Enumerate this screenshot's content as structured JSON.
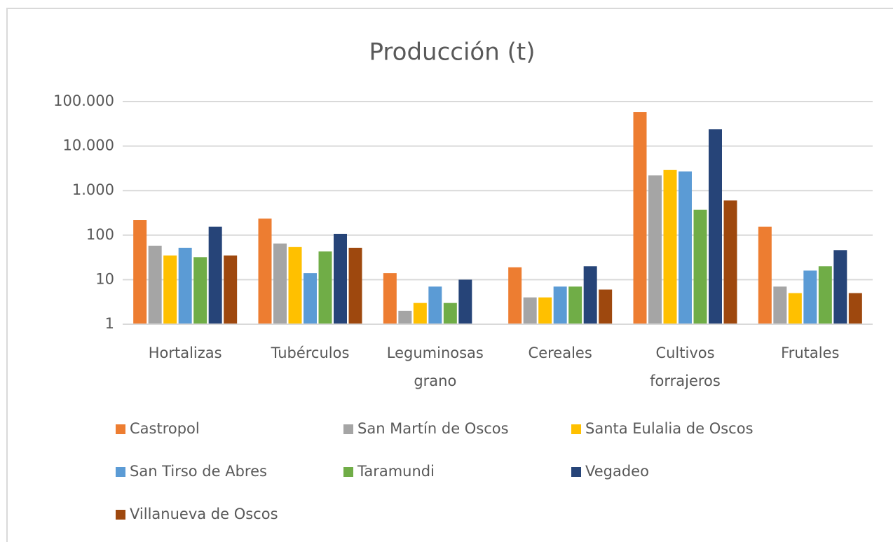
{
  "chart_data": {
    "type": "bar",
    "title": "Producción (t)",
    "categories": [
      "Hortalizas",
      "Tubérculos",
      "Leguminosas grano",
      "Cereales",
      "Cultivos forrajeros",
      "Frutales"
    ],
    "series": [
      {
        "name": "Castropol",
        "color": "#ed7d31",
        "values": [
          220,
          235,
          14,
          19,
          58000,
          155
        ]
      },
      {
        "name": "San Martín de Oscos",
        "color": "#a5a5a5",
        "values": [
          58,
          65,
          2,
          4,
          2200,
          7
        ]
      },
      {
        "name": "Santa Eulalia de Oscos",
        "color": "#ffc000",
        "values": [
          35,
          54,
          3,
          4,
          2900,
          5
        ]
      },
      {
        "name": "San Tirso de Abres",
        "color": "#5b9bd5",
        "values": [
          52,
          14,
          7,
          7,
          2700,
          16
        ]
      },
      {
        "name": "Taramundi",
        "color": "#70ad47",
        "values": [
          32,
          43,
          3,
          7,
          370,
          20
        ]
      },
      {
        "name": "Vegadeo",
        "color": "#264478",
        "values": [
          155,
          107,
          10,
          20,
          24000,
          46
        ]
      },
      {
        "name": "Villanueva de Oscos",
        "color": "#9e480e",
        "values": [
          35,
          52,
          null,
          6,
          600,
          5
        ]
      }
    ],
    "ylim": [
      1,
      100000
    ],
    "yticks": [
      1,
      10,
      100,
      {
        "value": 1000,
        "label": "1.000"
      },
      {
        "value": 10000,
        "label": "10.000"
      },
      {
        "value": 100000,
        "label": "100.000"
      }
    ],
    "log_scale": true,
    "grid": true,
    "legend": "bottom"
  }
}
